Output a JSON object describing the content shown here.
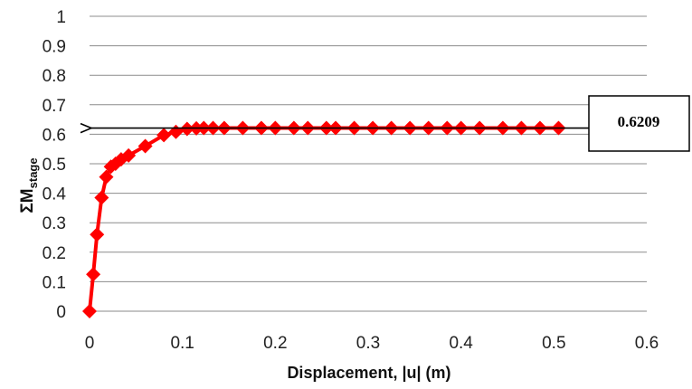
{
  "chart_data": {
    "type": "scatter",
    "xlabel": "Displacement, |u| (m)",
    "ylabel": {
      "main": "ΣM",
      "subscript": "stage"
    },
    "xlim": [
      0,
      0.6
    ],
    "ylim": [
      0,
      1
    ],
    "x_ticks": [
      "0",
      "0.1",
      "0.2",
      "0.3",
      "0.4",
      "0.5",
      "0.6"
    ],
    "y_ticks": [
      "0",
      "0.1",
      "0.2",
      "0.3",
      "0.4",
      "0.5",
      "0.6",
      "0.7",
      "0.8",
      "0.9",
      "1"
    ],
    "grid": "horizontal",
    "legend": "none",
    "series": [
      {
        "color": "#ff0000",
        "marker": "diamond",
        "x": [
          0,
          0.004,
          0.008,
          0.013,
          0.018,
          0.023,
          0.028,
          0.034,
          0.042,
          0.06,
          0.08,
          0.093,
          0.105,
          0.115,
          0.123,
          0.133,
          0.145,
          0.165,
          0.185,
          0.2,
          0.22,
          0.235,
          0.255,
          0.265,
          0.285,
          0.305,
          0.325,
          0.345,
          0.365,
          0.385,
          0.4,
          0.42,
          0.445,
          0.465,
          0.485,
          0.505
        ],
        "y": [
          0,
          0.125,
          0.26,
          0.385,
          0.455,
          0.49,
          0.5,
          0.515,
          0.528,
          0.56,
          0.597,
          0.608,
          0.618,
          0.62,
          0.621,
          0.621,
          0.621,
          0.621,
          0.621,
          0.621,
          0.621,
          0.621,
          0.621,
          0.621,
          0.621,
          0.621,
          0.621,
          0.621,
          0.621,
          0.621,
          0.621,
          0.621,
          0.621,
          0.621,
          0.621,
          0.621
        ]
      }
    ],
    "annotation": {
      "label": "0.6209",
      "y": 0.6209,
      "arrow_to_x": 0
    }
  }
}
